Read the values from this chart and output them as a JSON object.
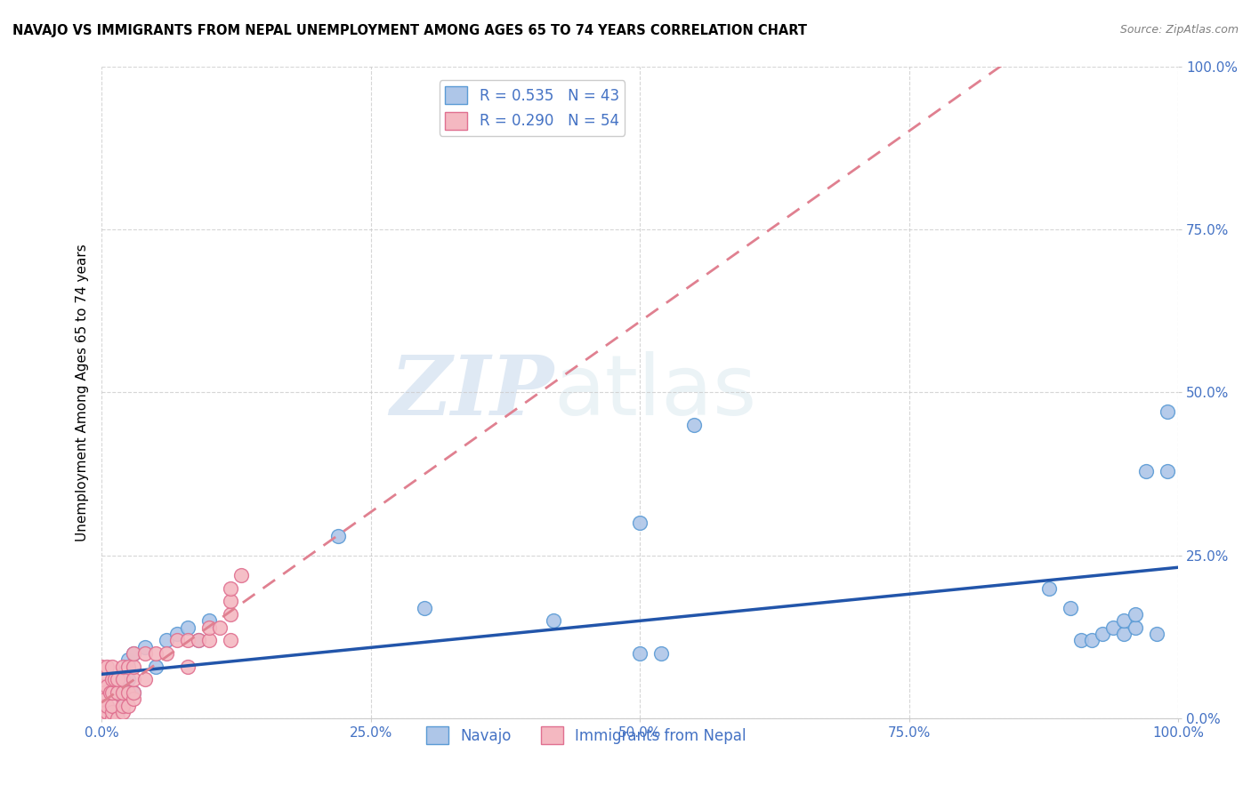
{
  "title": "NAVAJO VS IMMIGRANTS FROM NEPAL UNEMPLOYMENT AMONG AGES 65 TO 74 YEARS CORRELATION CHART",
  "source": "Source: ZipAtlas.com",
  "ylabel_label": "Unemployment Among Ages 65 to 74 years",
  "xlim": [
    0,
    1.0
  ],
  "ylim": [
    0,
    1.0
  ],
  "xticks": [
    0.0,
    0.25,
    0.5,
    0.75,
    1.0
  ],
  "xticklabels": [
    "0.0%",
    "25.0%",
    "50.0%",
    "75.0%",
    "100.0%"
  ],
  "yticks": [
    0.0,
    0.25,
    0.5,
    0.75,
    1.0
  ],
  "yticklabels": [
    "0.0%",
    "25.0%",
    "50.0%",
    "75.0%",
    "100.0%"
  ],
  "navajo_color": "#aec6e8",
  "navajo_edge_color": "#5b9bd5",
  "nepal_color": "#f4b8c1",
  "nepal_edge_color": "#e07090",
  "navajo_line_color": "#2255aa",
  "nepal_line_color": "#e08090",
  "R_navajo": 0.535,
  "N_navajo": 43,
  "R_nepal": 0.29,
  "N_nepal": 54,
  "legend_label_navajo": "Navajo",
  "legend_label_nepal": "Immigrants from Nepal",
  "watermark_zip": "ZIP",
  "watermark_atlas": "atlas",
  "tick_color": "#4472c4",
  "navajo_scatter_x": [
    0.005,
    0.008,
    0.01,
    0.01,
    0.012,
    0.015,
    0.015,
    0.02,
    0.02,
    0.025,
    0.025,
    0.03,
    0.03,
    0.04,
    0.05,
    0.06,
    0.07,
    0.08,
    0.09,
    0.1,
    0.22,
    0.3,
    0.42,
    0.5,
    0.52,
    0.55,
    0.88,
    0.9,
    0.91,
    0.92,
    0.93,
    0.94,
    0.95,
    0.95,
    0.96,
    0.96,
    0.97,
    0.98,
    0.99,
    0.99,
    0.5,
    0.005,
    0.01
  ],
  "navajo_scatter_y": [
    0.0,
    0.0,
    0.0,
    0.01,
    0.0,
    0.01,
    0.05,
    0.03,
    0.07,
    0.06,
    0.09,
    0.04,
    0.1,
    0.11,
    0.08,
    0.12,
    0.13,
    0.14,
    0.12,
    0.15,
    0.28,
    0.17,
    0.15,
    0.3,
    0.1,
    0.45,
    0.2,
    0.17,
    0.12,
    0.12,
    0.13,
    0.14,
    0.13,
    0.15,
    0.14,
    0.16,
    0.38,
    0.13,
    0.38,
    0.47,
    0.1,
    0.02,
    0.01
  ],
  "nepal_scatter_x": [
    0.0,
    0.0,
    0.0,
    0.0,
    0.0,
    0.0,
    0.0,
    0.0,
    0.0,
    0.005,
    0.005,
    0.005,
    0.005,
    0.005,
    0.008,
    0.01,
    0.01,
    0.01,
    0.01,
    0.01,
    0.01,
    0.012,
    0.015,
    0.015,
    0.015,
    0.02,
    0.02,
    0.02,
    0.02,
    0.02,
    0.025,
    0.025,
    0.025,
    0.03,
    0.03,
    0.03,
    0.03,
    0.03,
    0.04,
    0.04,
    0.05,
    0.06,
    0.07,
    0.08,
    0.08,
    0.09,
    0.1,
    0.1,
    0.11,
    0.12,
    0.12,
    0.12,
    0.12,
    0.13
  ],
  "nepal_scatter_y": [
    0.0,
    0.0,
    0.0,
    0.01,
    0.02,
    0.03,
    0.05,
    0.06,
    0.08,
    0.0,
    0.01,
    0.02,
    0.05,
    0.08,
    0.04,
    0.0,
    0.01,
    0.02,
    0.04,
    0.06,
    0.08,
    0.06,
    0.0,
    0.04,
    0.06,
    0.01,
    0.02,
    0.04,
    0.06,
    0.08,
    0.02,
    0.04,
    0.08,
    0.03,
    0.04,
    0.06,
    0.08,
    0.1,
    0.06,
    0.1,
    0.1,
    0.1,
    0.12,
    0.08,
    0.12,
    0.12,
    0.12,
    0.14,
    0.14,
    0.12,
    0.16,
    0.18,
    0.2,
    0.22
  ]
}
